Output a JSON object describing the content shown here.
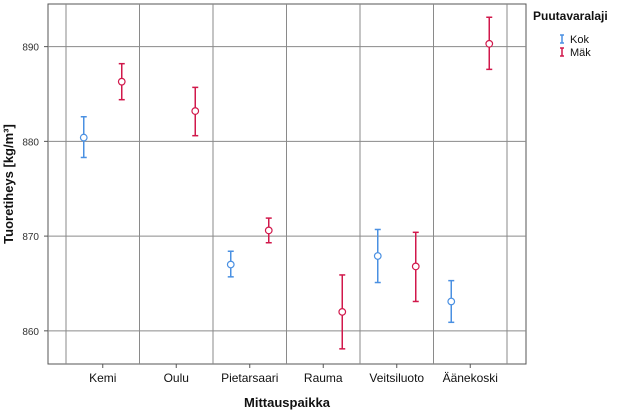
{
  "chart_data": {
    "type": "scatter",
    "xlabel": "Mittauspaikka",
    "ylabel": "Tuoretiheys [kg/m³]",
    "categories": [
      "Kemi",
      "Oulu",
      "Pietarsaari",
      "Rauma",
      "Veitsiluoto",
      "Äänekoski"
    ],
    "ylim": [
      856.5,
      894.5
    ],
    "yticks": [
      860,
      870,
      880,
      890
    ],
    "grid": true,
    "legend": {
      "title": "Puutavaralaji",
      "placement": "top-right"
    },
    "series": [
      {
        "name": "Kok",
        "color": "#4a90e2",
        "points": [
          {
            "category": "Kemi",
            "mean": 880.4,
            "lower": 878.3,
            "upper": 882.6
          },
          {
            "category": "Pietarsaari",
            "mean": 867.0,
            "lower": 865.7,
            "upper": 868.4
          },
          {
            "category": "Veitsiluoto",
            "mean": 867.9,
            "lower": 865.1,
            "upper": 870.7
          },
          {
            "category": "Äänekoski",
            "mean": 863.1,
            "lower": 860.9,
            "upper": 865.3
          }
        ]
      },
      {
        "name": "Mäk",
        "color": "#d1184b",
        "points": [
          {
            "category": "Kemi",
            "mean": 886.3,
            "lower": 884.4,
            "upper": 888.2
          },
          {
            "category": "Oulu",
            "mean": 883.2,
            "lower": 880.6,
            "upper": 885.7
          },
          {
            "category": "Pietarsaari",
            "mean": 870.6,
            "lower": 869.3,
            "upper": 871.9
          },
          {
            "category": "Rauma",
            "mean": 862.0,
            "lower": 858.1,
            "upper": 865.9
          },
          {
            "category": "Veitsiluoto",
            "mean": 866.8,
            "lower": 863.1,
            "upper": 870.4
          },
          {
            "category": "Äänekoski",
            "mean": 890.3,
            "lower": 887.6,
            "upper": 893.1
          }
        ]
      }
    ]
  }
}
